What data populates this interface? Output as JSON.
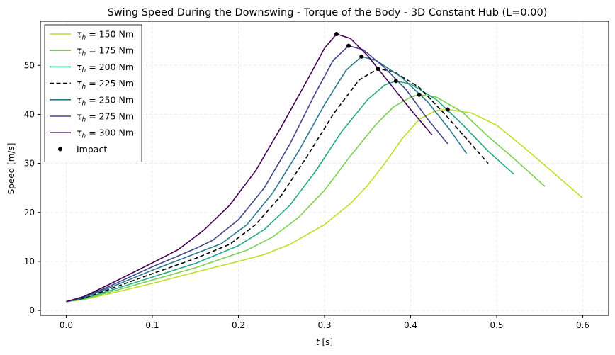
{
  "chart_data": {
    "type": "line",
    "title": "Swing Speed During the Downswing - Torque of the Body - 3D Constant Hub (L=0.00)",
    "xlabel": "t [s]",
    "ylabel": "Speed [m/s]",
    "xlim": [
      -0.03,
      0.63
    ],
    "ylim": [
      -1,
      59
    ],
    "xticks": [
      0.0,
      0.1,
      0.2,
      0.3,
      0.4,
      0.5,
      0.6
    ],
    "xtick_labels": [
      "0.0",
      "0.1",
      "0.2",
      "0.3",
      "0.4",
      "0.5",
      "0.6"
    ],
    "yticks": [
      0,
      10,
      20,
      30,
      40,
      50
    ],
    "ytick_labels": [
      "0",
      "10",
      "20",
      "30",
      "40",
      "50"
    ],
    "grid": true,
    "legend_position": "top-left",
    "series": [
      {
        "name": "τh = 150 Nm",
        "tau_label": "150",
        "color": "#bddf26",
        "dash": false,
        "points": [
          [
            0,
            1.8
          ],
          [
            0.02,
            2.2
          ],
          [
            0.05,
            3.4
          ],
          [
            0.1,
            5.5
          ],
          [
            0.15,
            7.8
          ],
          [
            0.2,
            10.0
          ],
          [
            0.23,
            11.4
          ],
          [
            0.26,
            13.5
          ],
          [
            0.3,
            17.5
          ],
          [
            0.33,
            21.8
          ],
          [
            0.35,
            25.5
          ],
          [
            0.37,
            30.0
          ],
          [
            0.39,
            35.0
          ],
          [
            0.41,
            39.0
          ],
          [
            0.43,
            40.8
          ],
          [
            0.443,
            41.0
          ],
          [
            0.47,
            40.3
          ],
          [
            0.5,
            37.8
          ],
          [
            0.53,
            33.5
          ],
          [
            0.56,
            29.0
          ],
          [
            0.6,
            22.9
          ]
        ],
        "impact": [
          0.443,
          41.0
        ]
      },
      {
        "name": "τh = 175 Nm",
        "tau_label": "175",
        "color": "#7ad151",
        "dash": false,
        "points": [
          [
            0,
            1.8
          ],
          [
            0.02,
            2.3
          ],
          [
            0.05,
            3.7
          ],
          [
            0.1,
            6.2
          ],
          [
            0.15,
            8.7
          ],
          [
            0.21,
            12.3
          ],
          [
            0.24,
            15.0
          ],
          [
            0.27,
            19.0
          ],
          [
            0.3,
            24.5
          ],
          [
            0.33,
            31.5
          ],
          [
            0.36,
            38.0
          ],
          [
            0.38,
            41.5
          ],
          [
            0.4,
            43.5
          ],
          [
            0.41,
            44.0
          ],
          [
            0.43,
            43.5
          ],
          [
            0.46,
            40.5
          ],
          [
            0.49,
            35.5
          ],
          [
            0.52,
            31.0
          ],
          [
            0.556,
            25.3
          ]
        ],
        "impact": [
          0.41,
          44.0
        ]
      },
      {
        "name": "τh = 200 Nm",
        "tau_label": "200",
        "color": "#22a884",
        "dash": false,
        "points": [
          [
            0,
            1.8
          ],
          [
            0.02,
            2.4
          ],
          [
            0.05,
            4.0
          ],
          [
            0.1,
            6.8
          ],
          [
            0.15,
            9.6
          ],
          [
            0.2,
            13.2
          ],
          [
            0.23,
            16.5
          ],
          [
            0.26,
            21.5
          ],
          [
            0.29,
            28.5
          ],
          [
            0.32,
            36.5
          ],
          [
            0.35,
            43.0
          ],
          [
            0.37,
            46.0
          ],
          [
            0.383,
            46.8
          ],
          [
            0.4,
            46.2
          ],
          [
            0.43,
            43.0
          ],
          [
            0.46,
            38.0
          ],
          [
            0.49,
            32.5
          ],
          [
            0.52,
            27.8
          ]
        ],
        "impact": [
          0.383,
          46.8
        ]
      },
      {
        "name": "τh = 225 Nm",
        "tau_label": "225",
        "color": "#000000",
        "dash": true,
        "points": [
          [
            0,
            1.8
          ],
          [
            0.02,
            2.5
          ],
          [
            0.05,
            4.3
          ],
          [
            0.1,
            7.5
          ],
          [
            0.15,
            10.6
          ],
          [
            0.19,
            13.5
          ],
          [
            0.22,
            17.5
          ],
          [
            0.25,
            23.5
          ],
          [
            0.28,
            31.5
          ],
          [
            0.31,
            40.0
          ],
          [
            0.34,
            47.0
          ],
          [
            0.362,
            49.3
          ],
          [
            0.38,
            48.8
          ],
          [
            0.41,
            45.5
          ],
          [
            0.44,
            40.0
          ],
          [
            0.47,
            34.0
          ],
          [
            0.49,
            30.0
          ]
        ],
        "impact": [
          0.362,
          49.3
        ]
      },
      {
        "name": "τh = 250 Nm",
        "tau_label": "250",
        "color": "#2a788e",
        "dash": false,
        "points": [
          [
            0,
            1.8
          ],
          [
            0.02,
            2.6
          ],
          [
            0.05,
            4.6
          ],
          [
            0.1,
            8.2
          ],
          [
            0.15,
            11.6
          ],
          [
            0.18,
            13.6
          ],
          [
            0.21,
            17.5
          ],
          [
            0.24,
            24.0
          ],
          [
            0.27,
            32.5
          ],
          [
            0.3,
            42.0
          ],
          [
            0.325,
            49.0
          ],
          [
            0.343,
            51.8
          ],
          [
            0.36,
            51.0
          ],
          [
            0.39,
            47.5
          ],
          [
            0.42,
            42.5
          ],
          [
            0.445,
            37.0
          ],
          [
            0.465,
            32.0
          ]
        ],
        "impact": [
          0.343,
          51.8
        ]
      },
      {
        "name": "τh = 275 Nm",
        "tau_label": "275",
        "color": "#414487",
        "dash": false,
        "points": [
          [
            0,
            1.8
          ],
          [
            0.02,
            2.7
          ],
          [
            0.05,
            4.9
          ],
          [
            0.1,
            8.9
          ],
          [
            0.15,
            12.6
          ],
          [
            0.17,
            14.3
          ],
          [
            0.2,
            18.5
          ],
          [
            0.23,
            25.0
          ],
          [
            0.26,
            34.0
          ],
          [
            0.29,
            44.5
          ],
          [
            0.31,
            51.0
          ],
          [
            0.328,
            54.0
          ],
          [
            0.345,
            53.2
          ],
          [
            0.37,
            49.5
          ],
          [
            0.395,
            45.0
          ],
          [
            0.42,
            39.0
          ],
          [
            0.443,
            34.0
          ]
        ],
        "impact": [
          0.328,
          54.0
        ]
      },
      {
        "name": "τh = 300 Nm",
        "tau_label": "300",
        "color": "#440154",
        "dash": false,
        "points": [
          [
            0,
            1.8
          ],
          [
            0.02,
            2.8
          ],
          [
            0.05,
            5.3
          ],
          [
            0.1,
            9.7
          ],
          [
            0.13,
            12.4
          ],
          [
            0.16,
            16.4
          ],
          [
            0.19,
            21.5
          ],
          [
            0.22,
            28.5
          ],
          [
            0.25,
            37.5
          ],
          [
            0.28,
            47.0
          ],
          [
            0.3,
            53.5
          ],
          [
            0.314,
            56.4
          ],
          [
            0.33,
            55.5
          ],
          [
            0.35,
            52.0
          ],
          [
            0.375,
            46.5
          ],
          [
            0.4,
            41.0
          ],
          [
            0.425,
            35.8
          ]
        ],
        "impact": [
          0.314,
          56.4
        ]
      }
    ],
    "impact_label": "Impact"
  }
}
